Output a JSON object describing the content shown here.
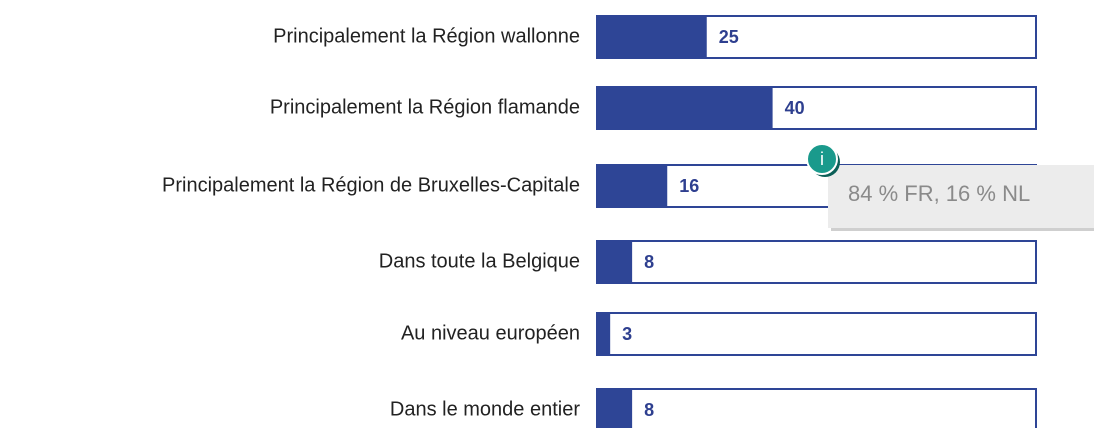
{
  "chart_data": {
    "type": "hbar",
    "categories": [
      "Principalement la Région wallonne",
      "Principalement la Région flamande",
      "Principalement la Région de Bruxelles-Capitale",
      "Dans toute la Belgique",
      "Au niveau européen",
      "Dans le monde entier"
    ],
    "values": [
      25,
      40,
      16,
      8,
      3,
      8
    ],
    "color": "#2e4596",
    "xlim": [
      0,
      100
    ],
    "annotation": {
      "category": 2,
      "icon": "i",
      "text": "84 % FR, 16 % NL",
      "color": "#1a9a8c"
    }
  }
}
